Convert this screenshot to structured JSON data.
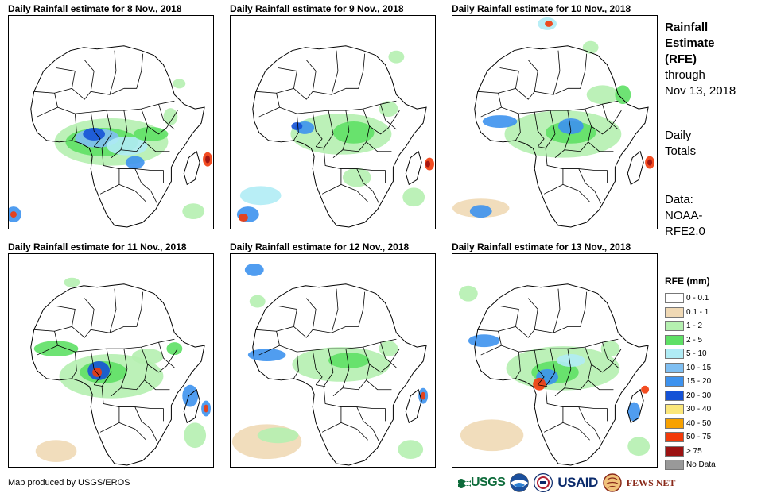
{
  "panels": [
    {
      "title": "Daily Rainfall estimate for 8 Nov., 2018"
    },
    {
      "title": "Daily Rainfall estimate for 9 Nov., 2018"
    },
    {
      "title": "Daily Rainfall estimate for 10 Nov., 2018"
    },
    {
      "title": "Daily Rainfall estimate for 11 Nov., 2018"
    },
    {
      "title": "Daily Rainfall estimate for 12 Nov., 2018"
    },
    {
      "title": "Daily Rainfall estimate for 13 Nov., 2018"
    }
  ],
  "sidebar": {
    "title_lines": [
      "Rainfall",
      "Estimate",
      "(RFE)"
    ],
    "through_lines": [
      "through",
      "Nov 13, 2018"
    ],
    "totals_lines": [
      "Daily",
      "Totals"
    ],
    "data_lines": [
      "Data:",
      "NOAA-",
      "RFE2.0"
    ]
  },
  "legend": {
    "title": "RFE (mm)",
    "items": [
      {
        "label": "0 - 0.1",
        "color": "#ffffff"
      },
      {
        "label": "0.1 - 1",
        "color": "#f0d9b5"
      },
      {
        "label": "1 - 2",
        "color": "#b5f0b0"
      },
      {
        "label": "2 - 5",
        "color": "#5ee065"
      },
      {
        "label": "5 - 10",
        "color": "#b0ecf5"
      },
      {
        "label": "10 - 15",
        "color": "#7fbff2"
      },
      {
        "label": "15 - 20",
        "color": "#3d92ee"
      },
      {
        "label": "20 - 30",
        "color": "#1552d6"
      },
      {
        "label": "30 - 40",
        "color": "#fbe77a"
      },
      {
        "label": "40 - 50",
        "color": "#f7a100"
      },
      {
        "label": "50 - 75",
        "color": "#f23a0a"
      },
      {
        "label": "> 75",
        "color": "#9c1212"
      },
      {
        "label": "No Data",
        "color": "#999999"
      }
    ]
  },
  "credit": "Map produced by USGS/EROS",
  "logos": {
    "usgs": "USGS",
    "usaid": "USAID",
    "fews": "FEWS NET"
  }
}
